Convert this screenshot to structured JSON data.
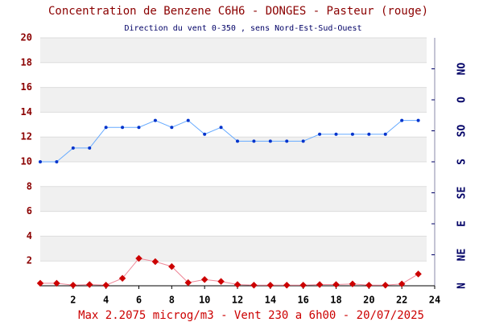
{
  "chart_data": {
    "type": "line",
    "title": "Concentration de Benzene C6H6  -   DONGES - Pasteur (rouge)",
    "subtitle": "Direction du vent 0-350 , sens Nord-Est-Sud-Ouest",
    "footer": "Max 2.2075 microg/m3 - Vent 230  a 6h00 - 20/07/2025",
    "x": [
      0,
      1,
      2,
      3,
      4,
      5,
      6,
      7,
      8,
      9,
      10,
      11,
      12,
      13,
      14,
      15,
      16,
      17,
      18,
      19,
      20,
      21,
      22,
      23
    ],
    "xlim": [
      0,
      24
    ],
    "xticks": [
      2,
      4,
      6,
      8,
      10,
      12,
      14,
      16,
      18,
      20,
      22,
      24
    ],
    "ylim": [
      0,
      20
    ],
    "yticks": [
      2,
      4,
      6,
      8,
      10,
      12,
      14,
      16,
      18,
      20
    ],
    "y2lim": [
      0,
      360
    ],
    "y2ticks": [
      {
        "value": 0,
        "label": "N"
      },
      {
        "value": 45,
        "label": "NE"
      },
      {
        "value": 90,
        "label": "E"
      },
      {
        "value": 135,
        "label": "SE"
      },
      {
        "value": 180,
        "label": "S"
      },
      {
        "value": 225,
        "label": "SO"
      },
      {
        "value": 270,
        "label": "O"
      },
      {
        "value": 315,
        "label": "NO"
      }
    ],
    "grid": true,
    "series": [
      {
        "name": "Benzene",
        "color": "#cc0000",
        "values": [
          0.2,
          0.2,
          0.05,
          0.1,
          0.05,
          0.6,
          2.2075,
          1.95,
          1.55,
          0.25,
          0.5,
          0.35,
          0.1,
          0.05,
          0.05,
          0.05,
          0.05,
          0.1,
          0.1,
          0.15,
          0.05,
          0.05,
          0.15,
          0.95
        ]
      },
      {
        "name": "Vent",
        "color": "#0033cc",
        "axis": "y2",
        "values": [
          180,
          180,
          200,
          200,
          230,
          230,
          230,
          240,
          230,
          240,
          220,
          230,
          210,
          210,
          210,
          210,
          210,
          220,
          220,
          220,
          220,
          220,
          240,
          240
        ]
      }
    ]
  }
}
